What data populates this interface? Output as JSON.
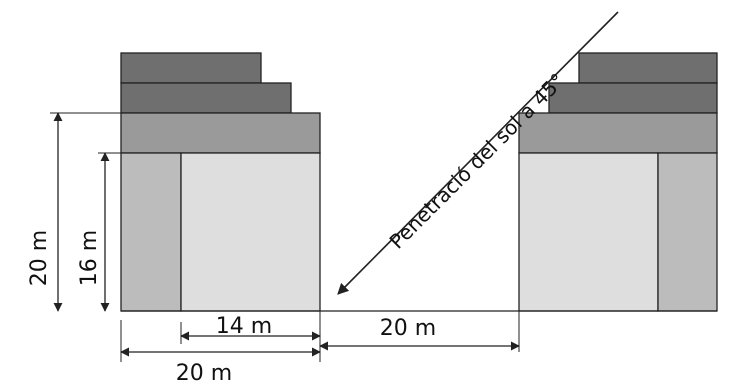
{
  "colors": {
    "dark": "#6f6f6f",
    "mid": "#9a9a9a",
    "light": "#dedede",
    "side": "#bcbcbc",
    "line": "#222222"
  },
  "labels": {
    "height_total": "20 m",
    "height_lower": "16 m",
    "width_inner": "14 m",
    "width_building": "20 m",
    "gap_width": "20 m",
    "sun_text": "Penetració  del sol a 45°"
  }
}
